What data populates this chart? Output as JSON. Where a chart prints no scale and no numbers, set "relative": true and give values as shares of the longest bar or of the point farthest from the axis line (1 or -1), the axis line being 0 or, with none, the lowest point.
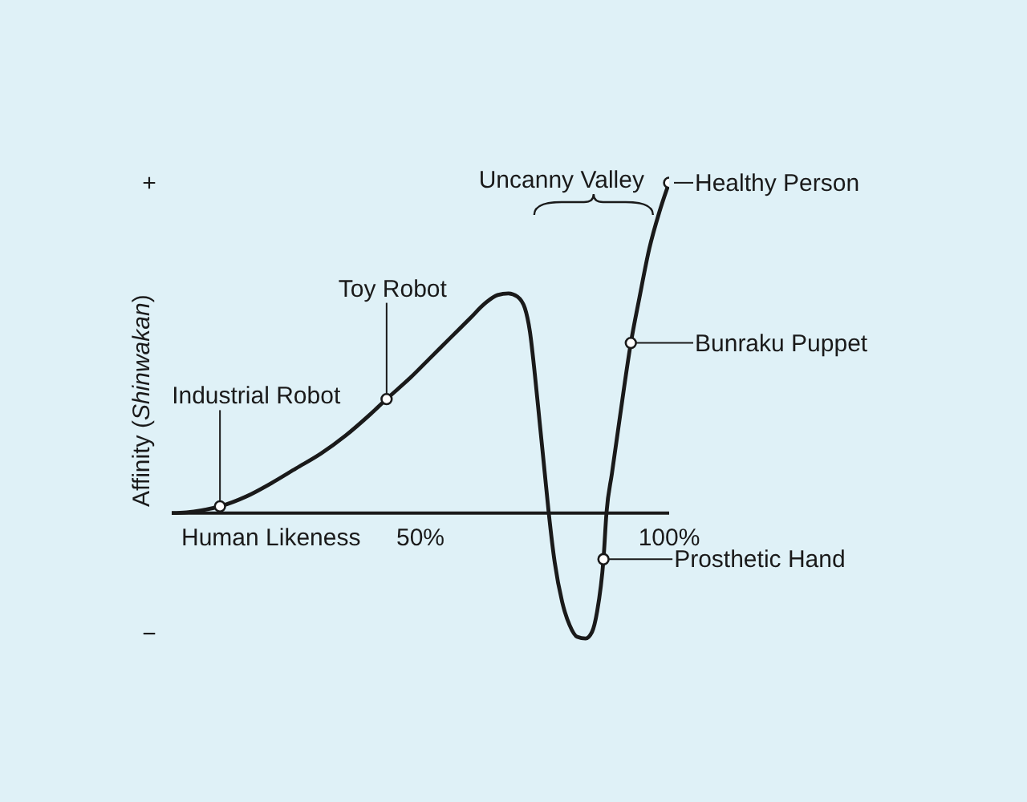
{
  "chart_data": {
    "type": "line",
    "relative": true,
    "xlabel": "Human Likeness",
    "ylabel": "Affinity (Shinwakan)",
    "xlim": [
      0,
      100
    ],
    "xticks": [
      {
        "value": 50,
        "label": "50%"
      },
      {
        "value": 100,
        "label": "100%"
      }
    ],
    "series": [
      {
        "color": "#1a1a1a",
        "marker": "none",
        "x": [
          0,
          3,
          6,
          9.7,
          15,
          20,
          25,
          30,
          35,
          40,
          43.2,
          48,
          52,
          56,
          60,
          63,
          65.5,
          67.7,
          69.5,
          71,
          72,
          73,
          74,
          75,
          75.8,
          77,
          78.5,
          80,
          81.5,
          83.2,
          84.5,
          85.5,
          86.8,
          87.4,
          88.5,
          90,
          92.3,
          94,
          96,
          98,
          100
        ],
        "values": [
          0,
          0.002,
          0.008,
          0.02,
          0.05,
          0.09,
          0.135,
          0.18,
          0.235,
          0.3,
          0.345,
          0.41,
          0.47,
          0.53,
          0.59,
          0.635,
          0.66,
          0.665,
          0.655,
          0.62,
          0.55,
          0.42,
          0.27,
          0.12,
          0,
          -0.15,
          -0.27,
          -0.34,
          -0.375,
          -0.38,
          -0.36,
          -0.3,
          -0.14,
          0,
          0.12,
          0.28,
          0.515,
          0.65,
          0.8,
          0.91,
          1
        ]
      },
      {
        "type": "scatter",
        "color": "#1a1a1a",
        "marker": "circle",
        "x": [
          9.7,
          43.2,
          86.8,
          92.3,
          100
        ],
        "values": [
          0.02,
          0.345,
          -0.14,
          0.515,
          1
        ]
      }
    ],
    "annotations": [
      "+",
      "−",
      {
        "text": "Industrial Robot",
        "x": 9.7,
        "y": 0.02
      },
      {
        "text": "Toy Robot",
        "x": 43.2,
        "y": 0.345
      },
      {
        "text": "Healthy Person",
        "x": 100,
        "y": 1
      },
      {
        "text": "Bunraku Puppet",
        "x": 92.3,
        "y": 0.515
      },
      {
        "text": "Prosthetic Hand",
        "x": 86.8,
        "y": -0.14
      },
      "Uncanny Valley"
    ]
  }
}
